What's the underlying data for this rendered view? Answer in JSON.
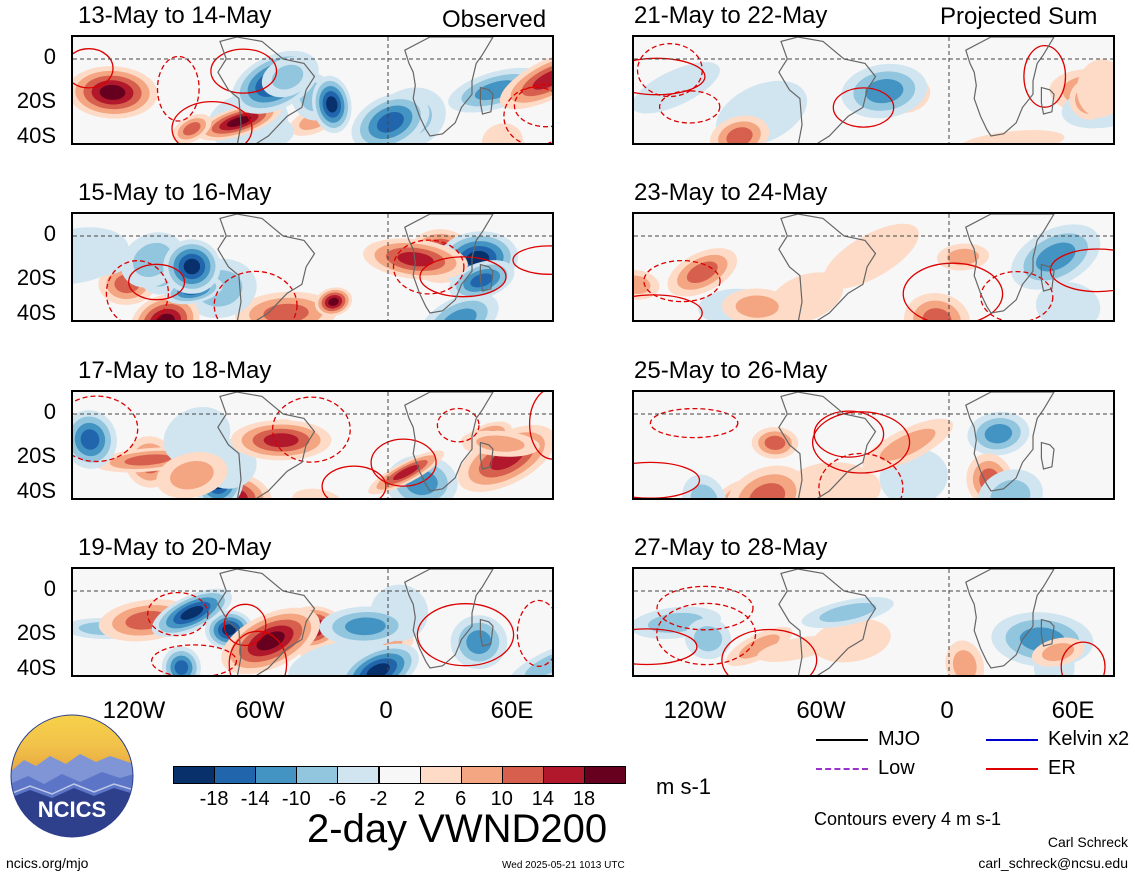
{
  "figure": {
    "title": "2-day VWND200",
    "units": "m s-1",
    "contour_note": "Contours every 4 m s-1",
    "author_name": "Carl Schreck",
    "author_email": "carl_schreck@ncsu.edu",
    "site": "ncics.org/mjo",
    "timestamp": "Wed 2025-05-21 1013 UTC",
    "logo_text": "NCICS"
  },
  "columns": {
    "left_label": "Observed",
    "right_label": "Projected Sum"
  },
  "axes": {
    "y_ticks": [
      "0",
      "20S",
      "40S"
    ],
    "x_ticks": [
      "120W",
      "60W",
      "0",
      "60E"
    ],
    "x_tick_lon": [
      -120,
      -60,
      0,
      60
    ],
    "lon_range": [
      -150,
      80
    ],
    "lat_range": [
      -40,
      10
    ]
  },
  "panels": [
    {
      "date": "13-May to 14-May",
      "col": "left",
      "row": 0
    },
    {
      "date": "15-May to 16-May",
      "col": "left",
      "row": 1
    },
    {
      "date": "17-May to 18-May",
      "col": "left",
      "row": 2
    },
    {
      "date": "19-May to 20-May",
      "col": "left",
      "row": 3
    },
    {
      "date": "21-May to 22-May",
      "col": "right",
      "row": 0
    },
    {
      "date": "23-May to 24-May",
      "col": "right",
      "row": 1
    },
    {
      "date": "25-May to 26-May",
      "col": "right",
      "row": 2
    },
    {
      "date": "27-May to 28-May",
      "col": "right",
      "row": 3
    }
  ],
  "colorbar": {
    "labels": [
      "-18",
      "-14",
      "-10",
      "-6",
      "-2",
      "2",
      "6",
      "10",
      "14",
      "18"
    ],
    "colors": [
      "#08306b",
      "#2166ac",
      "#4393c3",
      "#92c5de",
      "#d1e5f0",
      "#f7f7f7",
      "#fddbc7",
      "#f4a582",
      "#d6604d",
      "#b2182b",
      "#67001f"
    ]
  },
  "legend": [
    {
      "label": "MJO",
      "color": "#000000",
      "style": "solid"
    },
    {
      "label": "Kelvin x2",
      "color": "#0000cc",
      "style": "solid"
    },
    {
      "label": "Low",
      "color": "#9933cc",
      "style": "dashed"
    },
    {
      "label": "ER",
      "color": "#dd0000",
      "style": "solid"
    }
  ],
  "chart_data": {
    "type": "heatmap",
    "title": "2-day VWND200",
    "units": "m s-1",
    "levels": [
      -18,
      -14,
      -10,
      -6,
      -2,
      2,
      6,
      10,
      14,
      18
    ],
    "x_ticks": [
      "120W",
      "60W",
      "0",
      "60E"
    ],
    "y_ticks": [
      "0",
      "20S",
      "40S"
    ]
  }
}
